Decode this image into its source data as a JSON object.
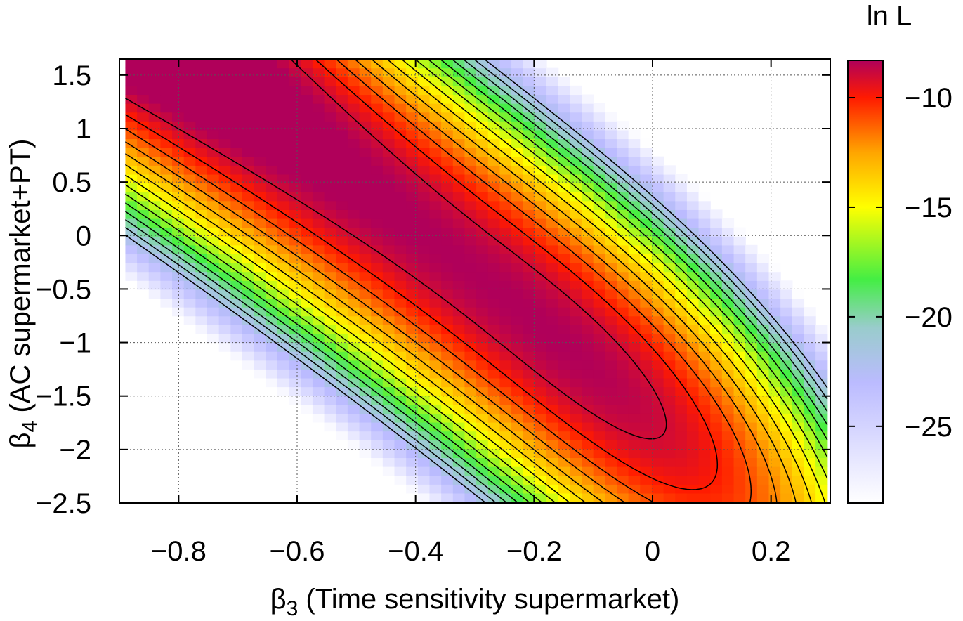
{
  "chart_data": {
    "type": "heatmap",
    "title": "",
    "xlabel": {
      "symbol": "β",
      "sub": "3",
      "text": " (Time sensitivity supermarket)"
    },
    "ylabel": {
      "symbol": "β",
      "sub": "4",
      "text": " (AC supermarket+PT)"
    },
    "colorbar_label": "ln L",
    "xlim": [
      -0.9,
      0.3
    ],
    "ylim": [
      -2.5,
      1.65
    ],
    "x_tick_values": [
      -0.8,
      -0.6,
      -0.4,
      -0.2,
      0,
      0.2
    ],
    "x_tick_labels": [
      "−0.8",
      "−0.6",
      "−0.4",
      "−0.2",
      "0",
      "0.2"
    ],
    "y_tick_values": [
      1.5,
      1,
      0.5,
      0,
      -0.5,
      -1,
      -1.5,
      -2,
      -2.5
    ],
    "y_tick_labels": [
      "1.5",
      "1",
      "0.5",
      "0",
      "−0.5",
      "−1",
      "−1.5",
      "−2",
      "−2.5"
    ],
    "colorbar_range": [
      -28.5,
      -8.3
    ],
    "colorbar_tick_values": [
      -10,
      -15,
      -20,
      -25
    ],
    "colorbar_tick_labels": [
      "−10",
      "−15",
      "−20",
      "−25"
    ],
    "colormap": [
      {
        "value": -8.3,
        "color": "#b0005a"
      },
      {
        "value": -10.0,
        "color": "#ff1a00"
      },
      {
        "value": -12.5,
        "color": "#ffa500"
      },
      {
        "value": -15.0,
        "color": "#ffff00"
      },
      {
        "value": -18.3,
        "color": "#44ee44"
      },
      {
        "value": -20.5,
        "color": "#99cccc"
      },
      {
        "value": -23.0,
        "color": "#bbbbff"
      },
      {
        "value": -28.5,
        "color": "#ffffff"
      }
    ],
    "surface": {
      "max_lnL": -8.3,
      "max_at": {
        "x": -0.3,
        "y": -0.35
      },
      "curvature": {
        "a": 55,
        "b": 3.2,
        "c": 14,
        "cubic": 40
      },
      "cutoff_below": -28.5
    },
    "contour_levels": [
      -9,
      -10,
      -11,
      -12,
      -13,
      -14,
      -15,
      -16,
      -17,
      -18,
      -19,
      -20,
      -21,
      -22
    ],
    "grid": true
  }
}
